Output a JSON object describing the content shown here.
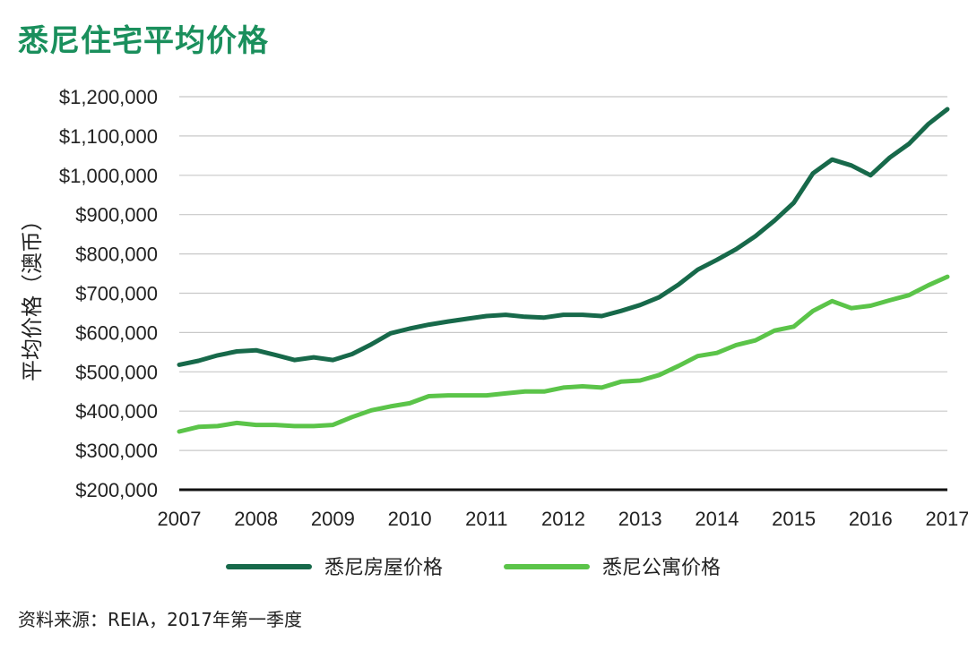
{
  "title": "悉尼住宅平均价格",
  "source": "资料来源：REIA，2017年第一季度",
  "colors": {
    "title": "#1a8f5c",
    "house": "#17694a",
    "apartment": "#5bc449",
    "grid": "#c8c8c8",
    "axis": "#111111"
  },
  "chart_data": {
    "type": "line",
    "title": "悉尼住宅平均价格",
    "xlabel": "",
    "ylabel": "平均价格（澳币）",
    "ylim": [
      200000,
      1200000
    ],
    "yticks": [
      200000,
      300000,
      400000,
      500000,
      600000,
      700000,
      800000,
      900000,
      1000000,
      1100000,
      1200000
    ],
    "ytick_labels": [
      "$200,000",
      "$300,000",
      "$400,000",
      "$500,000",
      "$600,000",
      "$700,000",
      "$800,000",
      "$900,000",
      "$1,000,000",
      "$1,100,000",
      "$1,200,000"
    ],
    "xlim": [
      2007,
      2017
    ],
    "xticks": [
      "2007",
      "2008",
      "2009",
      "2010",
      "2011",
      "2012",
      "2013",
      "2014",
      "2015",
      "2016",
      "2017"
    ],
    "series": [
      {
        "name": "悉尼房屋价格",
        "color": "#17694a",
        "x": [
          2007.0,
          2007.25,
          2007.5,
          2007.75,
          2008.0,
          2008.25,
          2008.5,
          2008.75,
          2009.0,
          2009.25,
          2009.5,
          2009.75,
          2010.0,
          2010.25,
          2010.5,
          2010.75,
          2011.0,
          2011.25,
          2011.5,
          2011.75,
          2012.0,
          2012.25,
          2012.5,
          2012.75,
          2013.0,
          2013.25,
          2013.5,
          2013.75,
          2014.0,
          2014.25,
          2014.5,
          2014.75,
          2015.0,
          2015.25,
          2015.5,
          2015.75,
          2016.0,
          2016.25,
          2016.5,
          2016.75,
          2017.0
        ],
        "values": [
          518000,
          528000,
          542000,
          552000,
          555000,
          543000,
          530000,
          537000,
          530000,
          545000,
          570000,
          598000,
          610000,
          620000,
          628000,
          635000,
          642000,
          645000,
          640000,
          638000,
          645000,
          645000,
          642000,
          655000,
          670000,
          690000,
          722000,
          760000,
          785000,
          812000,
          845000,
          885000,
          930000,
          1005000,
          1040000,
          1025000,
          1000000,
          1045000,
          1080000,
          1130000,
          1168000
        ]
      },
      {
        "name": "悉尼公寓价格",
        "color": "#5bc449",
        "x": [
          2007.0,
          2007.25,
          2007.5,
          2007.75,
          2008.0,
          2008.25,
          2008.5,
          2008.75,
          2009.0,
          2009.25,
          2009.5,
          2009.75,
          2010.0,
          2010.25,
          2010.5,
          2010.75,
          2011.0,
          2011.25,
          2011.5,
          2011.75,
          2012.0,
          2012.25,
          2012.5,
          2012.75,
          2013.0,
          2013.25,
          2013.5,
          2013.75,
          2014.0,
          2014.25,
          2014.5,
          2014.75,
          2015.0,
          2015.25,
          2015.5,
          2015.75,
          2016.0,
          2016.25,
          2016.5,
          2016.75,
          2017.0
        ],
        "values": [
          348000,
          360000,
          362000,
          370000,
          365000,
          365000,
          362000,
          362000,
          365000,
          385000,
          402000,
          412000,
          420000,
          438000,
          440000,
          440000,
          440000,
          445000,
          450000,
          450000,
          460000,
          463000,
          460000,
          475000,
          478000,
          492000,
          515000,
          540000,
          548000,
          568000,
          580000,
          605000,
          615000,
          655000,
          680000,
          662000,
          668000,
          682000,
          695000,
          720000,
          742000
        ]
      }
    ],
    "legend": "bottom"
  }
}
